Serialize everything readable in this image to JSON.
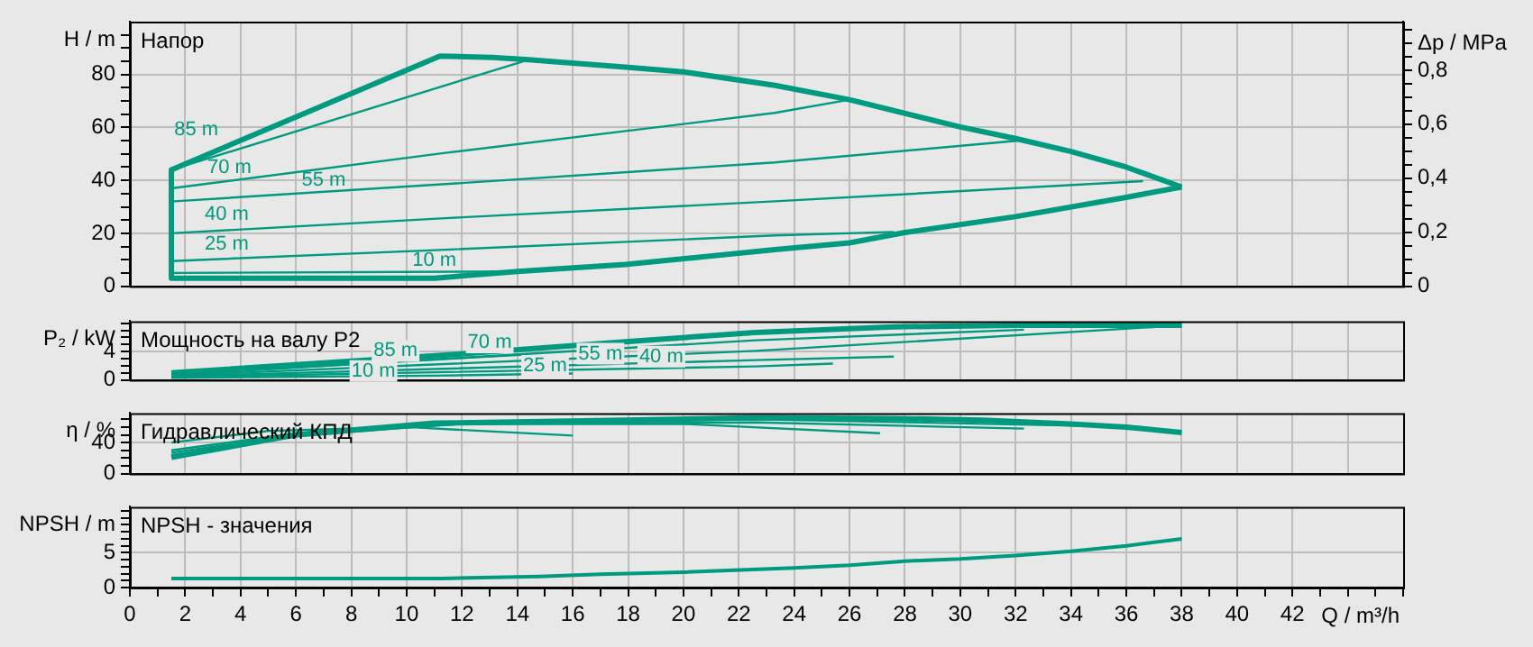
{
  "chart_data": [
    {
      "type": "line",
      "title": "Напор",
      "ylabel": "H / m",
      "y2label": "Δp / MPa",
      "xlim": [
        0,
        46
      ],
      "ylim": [
        0,
        100
      ],
      "y2lim": [
        0,
        0.98
      ],
      "grid": true,
      "tick_labels": "y",
      "marker": "none",
      "line_style": "solid",
      "xticks": [
        0,
        2,
        4,
        6,
        8,
        10,
        12,
        14,
        16,
        18,
        20,
        22,
        24,
        26,
        28,
        30,
        32,
        34,
        36,
        38,
        40,
        42,
        44
      ],
      "yticks": [
        0,
        {
          "value": 5,
          "label": null
        },
        {
          "value": 10,
          "label": null
        },
        {
          "value": 15,
          "label": null
        },
        20,
        {
          "value": 25,
          "label": null
        },
        {
          "value": 30,
          "label": null
        },
        {
          "value": 35,
          "label": null
        },
        40,
        {
          "value": 45,
          "label": null
        },
        {
          "value": 50,
          "label": null
        },
        {
          "value": 55,
          "label": null
        },
        60,
        {
          "value": 65,
          "label": null
        },
        {
          "value": 70,
          "label": null
        },
        {
          "value": 75,
          "label": null
        },
        80,
        {
          "value": 85,
          "label": null
        },
        {
          "value": 90,
          "label": null
        },
        {
          "value": 95,
          "label": null
        }
      ],
      "y2ticks": [
        0,
        {
          "value": 0.05,
          "label": null
        },
        {
          "value": 0.1,
          "label": null
        },
        {
          "value": 0.15,
          "label": null
        },
        {
          "value": 0.2,
          "label": "0,2"
        },
        {
          "value": 0.25,
          "label": null
        },
        {
          "value": 0.3,
          "label": null
        },
        {
          "value": 0.35,
          "label": null
        },
        {
          "value": 0.4,
          "label": "0,4"
        },
        {
          "value": 0.45,
          "label": null
        },
        {
          "value": 0.5,
          "label": null
        },
        {
          "value": 0.55,
          "label": null
        },
        {
          "value": 0.6,
          "label": "0,6"
        },
        {
          "value": 0.65,
          "label": null
        },
        {
          "value": 0.7,
          "label": null
        },
        {
          "value": 0.75,
          "label": null
        },
        {
          "value": 0.8,
          "label": "0,8"
        },
        {
          "value": 0.85,
          "label": null
        },
        {
          "value": 0.9,
          "label": null
        },
        {
          "value": 0.95,
          "label": null
        }
      ],
      "series": [
        {
          "color": "#009a80",
          "x": [
            1.5,
            11.2,
            13.1,
            14.4,
            17.9,
            20,
            23.3,
            26,
            30,
            32,
            34,
            36,
            38
          ],
          "values": [
            44,
            87,
            86.5,
            85.6,
            82.8,
            81,
            75.9,
            70.5,
            60.2,
            55.8,
            50.9,
            45,
            37.5
          ]
        },
        {
          "color": "#009a80",
          "x": [
            1.5,
            1.5,
            11,
            14,
            17.9,
            23.3,
            26,
            28,
            32,
            36,
            38
          ],
          "values": [
            44,
            3,
            3,
            5.6,
            8.2,
            13.8,
            16.4,
            20.3,
            26.3,
            33.6,
            37.5
          ]
        },
        {
          "color": "#009a80",
          "x": [
            1.5,
            14.4
          ],
          "values": [
            44,
            85.6
          ]
        },
        {
          "color": "#009a80",
          "x": [
            1.5,
            11.4,
            23.3,
            26
          ],
          "values": [
            37,
            50.4,
            65.5,
            70.5
          ]
        },
        {
          "color": "#009a80",
          "x": [
            1.5,
            11.4,
            23.3,
            32.3
          ],
          "values": [
            32,
            38.6,
            46.8,
            55.2
          ]
        },
        {
          "color": "#009a80",
          "x": [
            1.5,
            11.4,
            23.3,
            36.6
          ],
          "values": [
            20,
            25.7,
            32.1,
            39.7
          ]
        },
        {
          "color": "#009a80",
          "x": [
            1.5,
            11.4,
            23.3,
            27.6
          ],
          "values": [
            9.5,
            13.8,
            19.2,
            20.5
          ]
        },
        {
          "color": "#009a80",
          "x": [
            1.5,
            14
          ],
          "values": [
            5,
            5.6
          ]
        }
      ],
      "annotations": [
        "85 m",
        "70 m",
        "55 m",
        "40 m",
        "25 m",
        "10 m"
      ]
    },
    {
      "type": "line",
      "title": "Мощность на валу P2",
      "ylabel": "P₂ / kW",
      "xlim": [
        0,
        46
      ],
      "ylim": [
        0,
        8.3
      ],
      "grid": true,
      "tick_labels": "y",
      "marker": "none",
      "line_style": "solid",
      "xticks": [
        0,
        2,
        4,
        6,
        8,
        10,
        12,
        14,
        16,
        18,
        20,
        22,
        24,
        26,
        28,
        30,
        32,
        34,
        36,
        38,
        40,
        42,
        44
      ],
      "yticks": [
        0,
        {
          "value": 1,
          "label": null
        },
        {
          "value": 2,
          "label": null
        },
        {
          "value": 3,
          "label": null
        },
        4,
        {
          "value": 5,
          "label": null
        },
        {
          "value": 6,
          "label": null
        },
        {
          "value": 7,
          "label": null
        },
        {
          "value": 8,
          "label": null
        }
      ],
      "series": [
        {
          "color": "#009a80",
          "x": [
            1.5,
            11.4,
            17.9,
            22.6,
            27.6,
            32,
            38
          ],
          "values": [
            1,
            3.5,
            5.4,
            6.7,
            7.5,
            7.7,
            7.7
          ]
        },
        {
          "color": "#009a80",
          "x": [
            1.5,
            14.4
          ],
          "values": [
            0.8,
            3.6
          ]
        },
        {
          "color": "#009a80",
          "x": [
            1.5,
            22.6,
            32.3
          ],
          "values": [
            0.7,
            5.6,
            7.1
          ]
        },
        {
          "color": "#009a80",
          "x": [
            1.5,
            22.6,
            38
          ],
          "values": [
            0.6,
            4.1,
            7.7
          ]
        },
        {
          "color": "#009a80",
          "x": [
            1.5,
            22.6,
            27.6
          ],
          "values": [
            0.5,
            2.8,
            3.3
          ]
        },
        {
          "color": "#009a80",
          "x": [
            1.5,
            22.6,
            25.4
          ],
          "values": [
            0.4,
            1.9,
            2.3
          ]
        },
        {
          "color": "#009a80",
          "x": [
            1.5,
            11,
            16
          ],
          "values": [
            0.3,
            0.6,
            0.9
          ]
        }
      ],
      "annotations": [
        "85 m",
        "10 m",
        "70 m",
        "25 m",
        "55 m",
        "40 m"
      ]
    },
    {
      "type": "line",
      "title": "Гидравлический КПД",
      "ylabel": "η / %",
      "xlim": [
        0,
        46
      ],
      "ylim": [
        0,
        78
      ],
      "grid": true,
      "tick_labels": "y",
      "marker": "none",
      "line_style": "solid",
      "xticks": [
        0,
        2,
        4,
        6,
        8,
        10,
        12,
        14,
        16,
        18,
        20,
        22,
        24,
        26,
        28,
        30,
        32,
        34,
        36,
        38,
        40,
        42,
        44
      ],
      "yticks": [
        0,
        {
          "value": 10,
          "label": null
        },
        {
          "value": 20,
          "label": null
        },
        {
          "value": 30,
          "label": null
        },
        40,
        {
          "value": 50,
          "label": null
        },
        {
          "value": 60,
          "label": null
        },
        {
          "value": 70,
          "label": null
        }
      ],
      "series": [
        {
          "color": "#009a80",
          "x": [
            1.5,
            6,
            11,
            17.9,
            22.6,
            27.6,
            30.8,
            34,
            36,
            38
          ],
          "values": [
            21,
            50,
            65,
            69,
            72,
            71,
            69,
            64,
            60,
            53
          ]
        },
        {
          "color": "#009a80",
          "x": [
            1.5,
            5,
            10,
            16
          ],
          "values": [
            40,
            55,
            60,
            49
          ]
        },
        {
          "color": "#009a80",
          "x": [
            1.5,
            6,
            12,
            20,
            27.1
          ],
          "values": [
            30,
            52,
            64,
            64,
            52
          ]
        },
        {
          "color": "#009a80",
          "x": [
            1.5,
            6,
            12,
            22.6,
            32.3
          ],
          "values": [
            27,
            50,
            64,
            66,
            58
          ]
        },
        {
          "color": "#009a80",
          "x": [
            1.5,
            6,
            12,
            22.6,
            36.6
          ],
          "values": [
            24,
            48,
            65,
            70,
            60
          ]
        }
      ]
    },
    {
      "type": "line",
      "title": "NPSH - значения",
      "ylabel": "NPSH / m",
      "xlabel": "Q / m³/h",
      "xlim": [
        0,
        46
      ],
      "ylim": [
        0,
        11.6
      ],
      "grid": true,
      "marker": "none",
      "line_style": "solid",
      "xticks": [
        0,
        {
          "value": 1,
          "label": null
        },
        2,
        {
          "value": 3,
          "label": null
        },
        4,
        {
          "value": 5,
          "label": null
        },
        6,
        {
          "value": 7,
          "label": null
        },
        8,
        {
          "value": 9,
          "label": null
        },
        10,
        {
          "value": 11,
          "label": null
        },
        12,
        {
          "value": 13,
          "label": null
        },
        14,
        {
          "value": 15,
          "label": null
        },
        16,
        {
          "value": 17,
          "label": null
        },
        18,
        {
          "value": 19,
          "label": null
        },
        20,
        {
          "value": 21,
          "label": null
        },
        22,
        {
          "value": 23,
          "label": null
        },
        24,
        {
          "value": 25,
          "label": null
        },
        26,
        {
          "value": 27,
          "label": null
        },
        28,
        {
          "value": 29,
          "label": null
        },
        30,
        {
          "value": 31,
          "label": null
        },
        32,
        {
          "value": 33,
          "label": null
        },
        34,
        {
          "value": 35,
          "label": null
        },
        36,
        {
          "value": 37,
          "label": null
        },
        38,
        {
          "value": 39,
          "label": null
        },
        40,
        {
          "value": 41,
          "label": null
        },
        42,
        {
          "value": 43,
          "label": null
        },
        {
          "value": 44,
          "label": null
        },
        {
          "value": 45,
          "label": null
        },
        {
          "value": 46,
          "label": null
        }
      ],
      "yticks": [
        0,
        {
          "value": 1,
          "label": null
        },
        {
          "value": 2,
          "label": null
        },
        {
          "value": 3,
          "label": null
        },
        {
          "value": 4,
          "label": null
        },
        5,
        {
          "value": 6,
          "label": null
        },
        {
          "value": 7,
          "label": null
        },
        {
          "value": 8,
          "label": null
        },
        {
          "value": 9,
          "label": null
        },
        {
          "value": 10,
          "label": null
        },
        {
          "value": 11,
          "label": null
        }
      ],
      "series": [
        {
          "color": "#009a80",
          "x": [
            1.5,
            11.3,
            14.8,
            17,
            20,
            24,
            26,
            28,
            30,
            32,
            34,
            36,
            38
          ],
          "values": [
            1.3,
            1.3,
            1.6,
            1.9,
            2.2,
            2.8,
            3.2,
            3.8,
            4.1,
            4.6,
            5.2,
            6,
            7
          ]
        }
      ]
    }
  ]
}
